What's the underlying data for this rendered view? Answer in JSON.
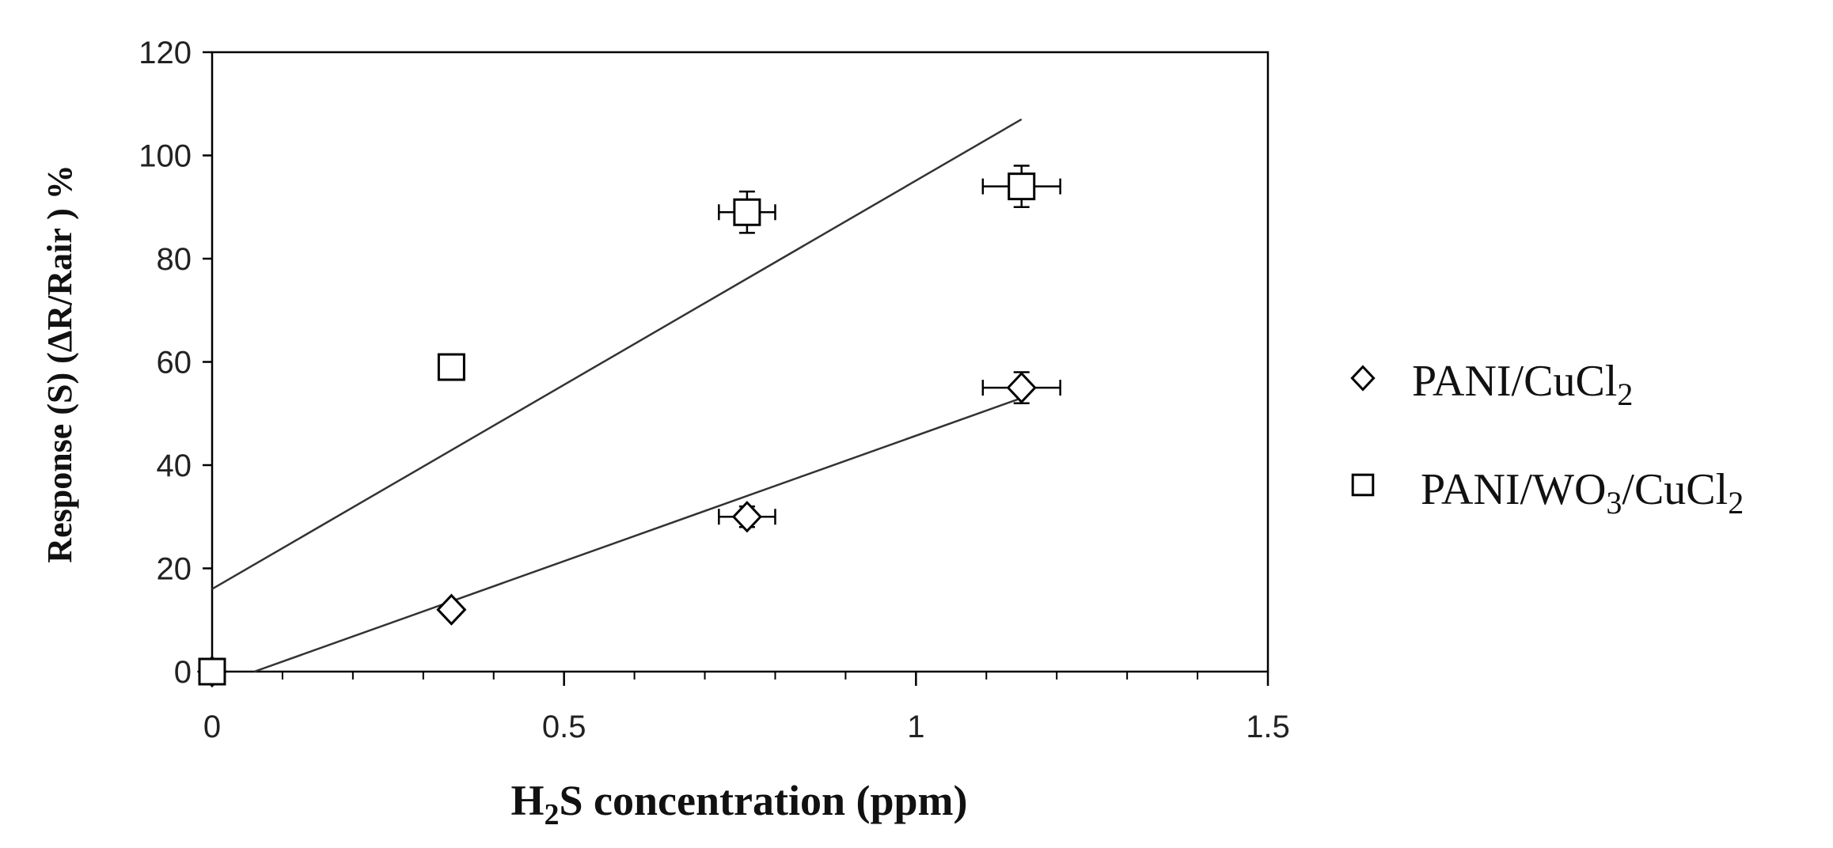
{
  "chart_data": {
    "type": "scatter",
    "x_axis": {
      "label_parts": [
        {
          "text": "H",
          "sub": false
        },
        {
          "text": "2",
          "sub": true
        },
        {
          "text": "S concentration (ppm)",
          "sub": false
        }
      ],
      "range": [
        0,
        1.5
      ],
      "ticks": [
        0,
        0.5,
        1,
        1.5
      ],
      "tick_labels": [
        "0",
        "0.5",
        "1",
        "1.5"
      ],
      "minor_step": 0.1
    },
    "y_axis": {
      "label": "Response  (S) (ΔR/Rair ) %",
      "range": [
        0,
        120
      ],
      "ticks": [
        0,
        20,
        40,
        60,
        80,
        100,
        120
      ],
      "tick_labels": [
        "0",
        "20",
        "40",
        "60",
        "80",
        "100",
        "120"
      ]
    },
    "grid": false,
    "legend_position": "right",
    "series": [
      {
        "id": "cucl2",
        "marker": "diamond",
        "legend_parts": [
          {
            "text": "PANI/CuCl",
            "sub": false
          },
          {
            "text": "2",
            "sub": true
          }
        ],
        "points": [
          {
            "x": 0,
            "y": 0
          },
          {
            "x": 0.34,
            "y": 12
          },
          {
            "x": 0.76,
            "y": 30,
            "xerr": 0.04,
            "yerr": 2
          },
          {
            "x": 1.15,
            "y": 55,
            "xerr": 0.055,
            "yerr": 3
          }
        ],
        "trendline": {
          "x": [
            0.06,
            1.15
          ],
          "y": [
            0,
            53
          ]
        }
      },
      {
        "id": "wo3",
        "marker": "square",
        "legend_parts": [
          {
            "text": "PANI/WO",
            "sub": false
          },
          {
            "text": "3",
            "sub": true
          },
          {
            "text": "/CuCl",
            "sub": false
          },
          {
            "text": "2",
            "sub": true
          }
        ],
        "points": [
          {
            "x": 0,
            "y": 0
          },
          {
            "x": 0.34,
            "y": 59
          },
          {
            "x": 0.76,
            "y": 89,
            "xerr": 0.04,
            "yerr": 4
          },
          {
            "x": 1.15,
            "y": 94,
            "xerr": 0.055,
            "yerr": 4
          }
        ],
        "trendline": {
          "x": [
            0,
            1.15
          ],
          "y": [
            16,
            107
          ]
        }
      }
    ]
  }
}
